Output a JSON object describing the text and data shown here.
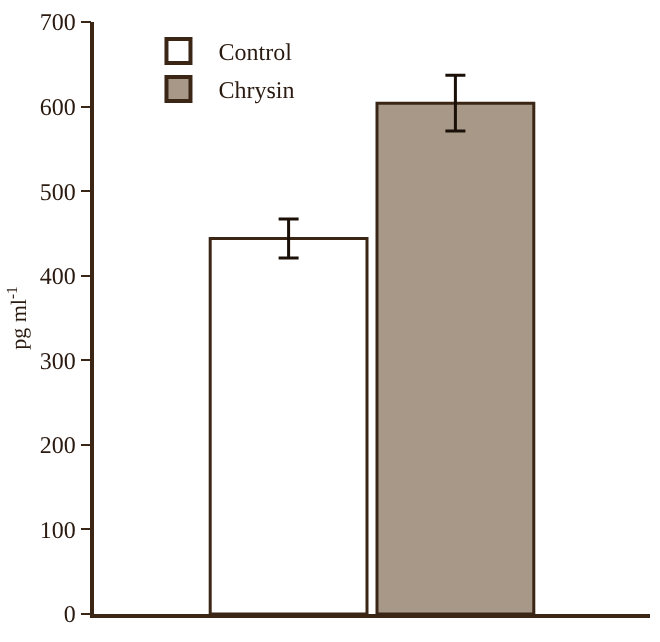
{
  "chart_data": {
    "type": "bar",
    "ylabel": "pg ml$^{-1}$",
    "categories": [
      null
    ],
    "series": [
      {
        "name": "Control",
        "color": "#ffffff",
        "values": [
          444
        ],
        "errors": [
          23
        ]
      },
      {
        "name": "Chrysin",
        "color": "#a89888",
        "values": [
          604
        ],
        "errors": [
          33
        ]
      }
    ],
    "ylim": [
      0,
      700
    ],
    "yticks": [
      0,
      100,
      200,
      300,
      400,
      500,
      600,
      700
    ],
    "legend": "top left",
    "tick_labels": "y"
  }
}
